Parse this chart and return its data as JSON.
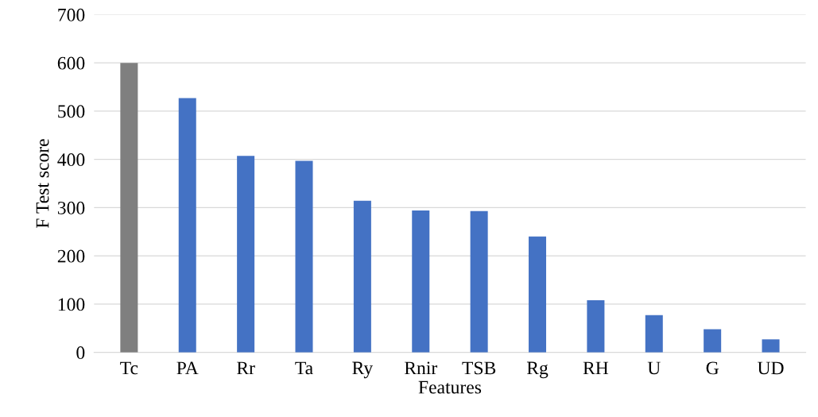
{
  "chart_data": {
    "type": "bar",
    "xlabel": "Features",
    "ylabel": "F Test score",
    "categories": [
      "Tc",
      "PA",
      "Rr",
      "Ta",
      "Ry",
      "Rnir",
      "TSB",
      "Rg",
      "RH",
      "U",
      "G",
      "UD"
    ],
    "values": [
      600,
      527,
      407,
      397,
      314,
      294,
      293,
      240,
      108,
      77,
      48,
      27
    ],
    "colors": [
      "#7f7f7f",
      "#4472c4",
      "#4472c4",
      "#4472c4",
      "#4472c4",
      "#4472c4",
      "#4472c4",
      "#4472c4",
      "#4472c4",
      "#4472c4",
      "#4472c4",
      "#4472c4"
    ],
    "ylim": [
      0,
      700
    ],
    "yticks": [
      0,
      100,
      200,
      300,
      400,
      500,
      600,
      700
    ],
    "grid": "y"
  }
}
